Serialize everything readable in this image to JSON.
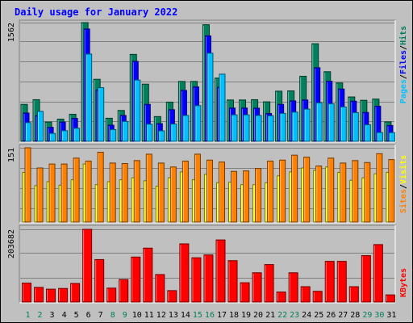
{
  "chart_data": {
    "type": "bar",
    "title": "Daily usage for January 2022",
    "days": [
      "1",
      "2",
      "3",
      "4",
      "5",
      "6",
      "7",
      "8",
      "9",
      "10",
      "11",
      "12",
      "13",
      "14",
      "15",
      "16",
      "17",
      "18",
      "19",
      "20",
      "21",
      "22",
      "23",
      "24",
      "25",
      "26",
      "27",
      "28",
      "29",
      "30",
      "31"
    ],
    "weekend_days": [
      "1",
      "2",
      "8",
      "9",
      "15",
      "16",
      "22",
      "23",
      "29",
      "30"
    ],
    "panels": [
      {
        "id": "top",
        "max_label": "1562",
        "ymax": 1562,
        "legend": [
          "Pages",
          "Files",
          "Hits"
        ],
        "series": [
          {
            "name": "Hits",
            "color": "#00805c",
            "values": [
              486,
              548,
              254,
              292,
              356,
              1562,
              816,
              304,
              406,
              1144,
              752,
              326,
              516,
              788,
              788,
              1534,
              832,
              544,
              544,
              548,
              520,
              660,
              664,
              856,
              1284,
              916,
              768,
              584,
              540,
              556,
              256
            ]
          },
          {
            "name": "Files",
            "color": "#0000ff",
            "values": [
              372,
              336,
              184,
              254,
              302,
              1478,
              676,
              212,
              340,
              1052,
              486,
              232,
              416,
              670,
              716,
              1388,
              710,
              438,
              438,
              436,
              366,
              486,
              532,
              544,
              968,
              790,
              688,
              528,
              380,
              462,
              208
            ]
          },
          {
            "name": "Pages",
            "color": "#00c0ff",
            "values": [
              246,
              394,
              104,
              140,
              172,
              1148,
              706,
              154,
              262,
              806,
              226,
              138,
              228,
              340,
              470,
              1160,
              884,
              348,
              348,
              340,
              336,
              368,
              384,
              424,
              506,
              494,
              452,
              378,
              218,
              116,
              114
            ]
          }
        ]
      },
      {
        "id": "mid",
        "max_label": "151",
        "ymax": 151,
        "legend": [
          "Sites",
          "Visits"
        ],
        "series": [
          {
            "name": "Visits",
            "color": "#ffff00",
            "values": [
              101,
              74,
              82,
              75,
              86,
              118,
              76,
              82,
              86,
              90,
              84,
              73,
              90,
              102,
              86,
              97,
              80,
              81,
              76,
              76,
              80,
              94,
              102,
              110,
              105,
              112,
              101,
              85,
              90,
              98,
              101
            ]
          },
          {
            "name": "Sites",
            "color": "#ff8000",
            "values": [
              151,
              110,
              118,
              118,
              130,
              124,
              142,
              120,
              119,
              125,
              138,
              120,
              112,
              124,
              138,
              126,
              122,
              103,
              104,
              109,
              124,
              126,
              136,
              132,
              114,
              130,
              120,
              125,
              121,
              139,
              127
            ]
          }
        ]
      },
      {
        "id": "bot",
        "max_label": "203682",
        "ymax": 203682,
        "legend": [
          "KBytes"
        ],
        "series": [
          {
            "name": "KBytes",
            "color": "#ff0000",
            "values": [
              53000,
              41000,
              36000,
              38000,
              52000,
              203682,
              119000,
              39000,
              63000,
              126000,
              151000,
              77000,
              32000,
              163000,
              124000,
              132000,
              174000,
              116000,
              54000,
              82000,
              105000,
              28000,
              82000,
              43000,
              30000,
              114000,
              114000,
              43000,
              130000,
              161000,
              20000
            ]
          }
        ]
      }
    ]
  }
}
